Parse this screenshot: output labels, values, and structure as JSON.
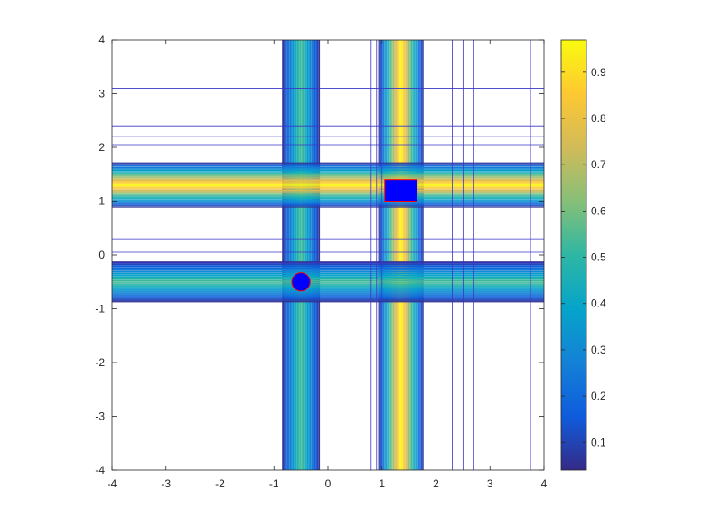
{
  "chart_data": {
    "type": "contour",
    "title": "",
    "xlabel": "",
    "ylabel": "",
    "xlim": [
      -4,
      4
    ],
    "ylim": [
      -4,
      4
    ],
    "xticks": [
      -4,
      -3,
      -2,
      -1,
      0,
      1,
      2,
      3,
      4
    ],
    "yticks": [
      -4,
      -3,
      -2,
      -1,
      0,
      1,
      2,
      3,
      4
    ],
    "grid": false,
    "colormap": "parula",
    "colorbar": {
      "position": "right",
      "range": [
        0.04,
        0.97
      ],
      "ticks": [
        0.1,
        0.2,
        0.3,
        0.4,
        0.5,
        0.6,
        0.7,
        0.8,
        0.9
      ]
    },
    "vertical_bands": [
      {
        "center": -0.5,
        "halfwidth": 0.35,
        "peak": 0.55
      },
      {
        "center": 1.35,
        "halfwidth": 0.42,
        "peak": 0.97
      }
    ],
    "horizontal_bands": [
      {
        "center": 1.3,
        "halfwidth": 0.42,
        "peak": 0.97
      },
      {
        "center": -0.5,
        "halfwidth": 0.38,
        "peak": 0.55
      }
    ],
    "extra_vertical_lines": [
      0.8,
      0.9,
      1.0,
      2.3,
      2.5,
      2.7,
      3.75
    ],
    "extra_horizontal_lines": [
      3.1,
      2.4,
      2.2,
      2.05,
      0.3,
      0.05,
      -0.15
    ],
    "markers": [
      {
        "shape": "circle",
        "x": -0.5,
        "y": -0.5,
        "size": 0.17,
        "fill": "#0000ff",
        "edge": "#ff0000"
      },
      {
        "shape": "rectangle",
        "x": 1.05,
        "y": 1.0,
        "width": 0.6,
        "height": 0.4,
        "fill": "#0000ff",
        "edge": "#ff0000"
      }
    ]
  }
}
